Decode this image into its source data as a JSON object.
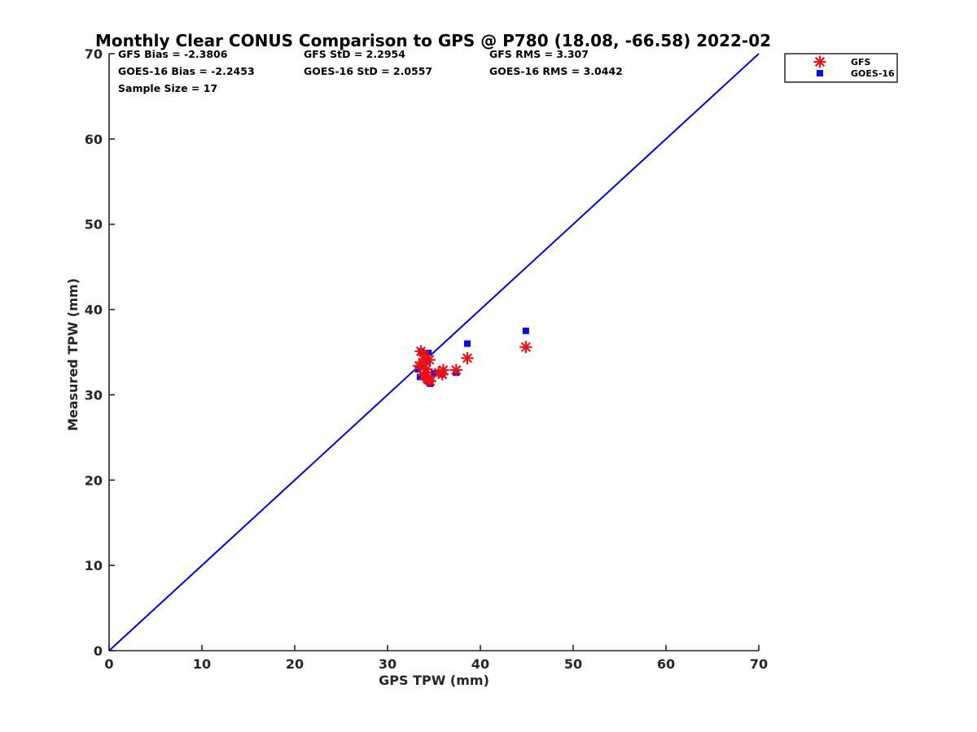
{
  "chart_data": {
    "type": "scatter",
    "title": "Monthly Clear CONUS Comparison to GPS @ P780 (18.08, -66.58) 2022-02",
    "xlabel": "GPS TPW (mm)",
    "ylabel": "Measured TPW (mm)",
    "xlim": [
      0,
      70
    ],
    "ylim": [
      0,
      70
    ],
    "xticks": [
      "0",
      "10",
      "20",
      "30",
      "40",
      "50",
      "60",
      "70"
    ],
    "yticks": [
      "0",
      "10",
      "20",
      "30",
      "40",
      "50",
      "60",
      "70"
    ],
    "grid": false,
    "legend_position": "top-right",
    "reference_line": {
      "x": [
        0,
        70
      ],
      "y": [
        0,
        70
      ],
      "color": "#0000dd"
    },
    "stats": [
      [
        "GFS Bias = -2.3806",
        "GFS StD = 2.2954",
        "GFS RMS = 3.307"
      ],
      [
        "GOES-16 Bias = -2.2453",
        "GOES-16 StD = 2.0557",
        "GOES-16 RMS = 3.0442"
      ],
      [
        "Sample Size = 17"
      ]
    ],
    "series": [
      {
        "name": "GFS",
        "marker": "asterisk",
        "color": "#ee1111",
        "points": [
          [
            33.6,
            35.1
          ],
          [
            34.5,
            34.1
          ],
          [
            33.4,
            33.4
          ],
          [
            34.2,
            33.0
          ],
          [
            33.9,
            32.3
          ],
          [
            34.6,
            31.6
          ],
          [
            34.3,
            31.9
          ],
          [
            35.9,
            32.4
          ],
          [
            36.0,
            32.9
          ],
          [
            37.4,
            32.9
          ],
          [
            38.6,
            34.3
          ],
          [
            44.9,
            35.6
          ],
          [
            34.1,
            32.6
          ],
          [
            33.8,
            33.8
          ],
          [
            34.4,
            31.8
          ],
          [
            35.5,
            32.6
          ],
          [
            34.0,
            34.6
          ]
        ]
      },
      {
        "name": "GOES-16",
        "marker": "square",
        "color": "#0a0af0",
        "points": [
          [
            33.6,
            35.1
          ],
          [
            34.4,
            34.9
          ],
          [
            34.3,
            33.9
          ],
          [
            33.3,
            33.0
          ],
          [
            33.5,
            32.1
          ],
          [
            34.4,
            31.6
          ],
          [
            34.6,
            31.3
          ],
          [
            35.9,
            32.4
          ],
          [
            37.4,
            32.6
          ],
          [
            38.6,
            36.0
          ],
          [
            44.9,
            37.5
          ],
          [
            34.1,
            32.0
          ],
          [
            34.5,
            32.0
          ],
          [
            33.9,
            33.4
          ],
          [
            34.2,
            31.8
          ],
          [
            35.0,
            32.5
          ],
          [
            33.7,
            33.6
          ]
        ]
      }
    ]
  }
}
